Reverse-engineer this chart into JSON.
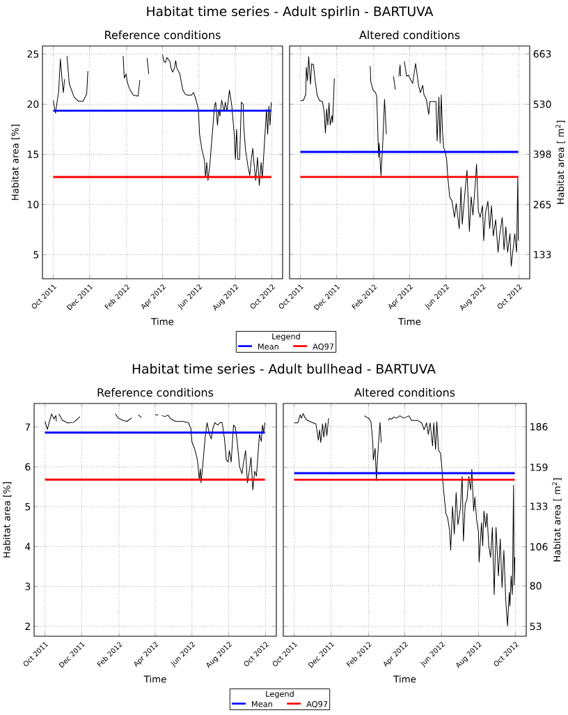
{
  "chart_data": [
    {
      "type": "line",
      "title": "Habitat time series - Adult spirlin - BARTUVA",
      "subtitle": "Reference conditions",
      "xlabel": "Time",
      "ylabel": "Habitat area [%]",
      "legend": "bottom",
      "legend_title": "Legend",
      "grid": true,
      "xlim": [
        "2011-09-13",
        "2012-10-19"
      ],
      "ylim": [
        2.6,
        25.8
      ],
      "yticks": [
        5,
        10,
        15,
        20,
        25
      ],
      "xticks": [
        {
          "value": "2011-10-01",
          "label": "Oct 2011"
        },
        {
          "value": "2011-12-01",
          "label": "Dec 2011"
        },
        {
          "value": "2012-02-01",
          "label": "Feb 2012"
        },
        {
          "value": "2012-04-01",
          "label": "Apr 2012"
        },
        {
          "value": "2012-06-01",
          "label": "Jun 2012"
        },
        {
          "value": "2012-08-01",
          "label": "Aug 2012"
        },
        {
          "value": "2012-10-01",
          "label": "Oct 2012"
        }
      ],
      "ref_lines": [
        {
          "axis": "y",
          "value": 19.35,
          "label": "Mean",
          "color": "#0000ff"
        },
        {
          "axis": "y",
          "value": 12.74,
          "label": "AQ97",
          "color": "#ff0000"
        }
      ],
      "series": [
        {
          "color": "#000000",
          "x": [
            "2011-10-01",
            "2011-10-05",
            "2011-10-08",
            "2011-10-10",
            "2011-10-13",
            "2011-10-16",
            "2011-10-18",
            "2011-10-20",
            "2011-10-22",
            "2011-10-24",
            "2011-10-28",
            "2011-11-05",
            "2011-11-12",
            "2011-11-20",
            "2011-11-26",
            "2011-11-28",
            "2011-12-20",
            "2012-01-26",
            "2012-01-28",
            "2012-01-31",
            "2012-02-02",
            "2012-02-06",
            "2012-02-12",
            "2012-02-20",
            "2012-02-23",
            "2012-02-28",
            "2012-03-06",
            "2012-03-09",
            "2012-03-19",
            "2012-04-01",
            "2012-04-03",
            "2012-04-06",
            "2012-04-08",
            "2012-04-13",
            "2012-04-16",
            "2012-04-18",
            "2012-04-21",
            "2012-04-23",
            "2012-04-25",
            "2012-04-30",
            "2012-05-05",
            "2012-05-09",
            "2012-05-13",
            "2012-05-19",
            "2012-05-23",
            "2012-05-27",
            "2012-05-31",
            "2012-06-02",
            "2012-06-06",
            "2012-06-10",
            "2012-06-12",
            "2012-06-14",
            "2012-06-16",
            "2012-06-19",
            "2012-06-22",
            "2012-06-24",
            "2012-06-27",
            "2012-06-29",
            "2012-07-02",
            "2012-07-04",
            "2012-07-06",
            "2012-07-09",
            "2012-07-13",
            "2012-07-15",
            "2012-07-18",
            "2012-07-22",
            "2012-07-26",
            "2012-07-30",
            "2012-08-01",
            "2012-08-03",
            "2012-08-05",
            "2012-08-08",
            "2012-08-11",
            "2012-08-14",
            "2012-08-15",
            "2012-08-18",
            "2012-08-22",
            "2012-08-25",
            "2012-08-28",
            "2012-08-30",
            "2012-09-01",
            "2012-09-04",
            "2012-09-07",
            "2012-09-10",
            "2012-09-13",
            "2012-09-15",
            "2012-09-19",
            "2012-09-22",
            "2012-09-24",
            "2012-09-26",
            "2012-09-28",
            "2012-09-30"
          ],
          "values": [
            20.35,
            19.1,
            20.45,
            21.15,
            24.5,
            22.3,
            21.15,
            22.5,
            null,
            24.8,
            22.0,
            20.7,
            20.3,
            20.3,
            21.0,
            23.3,
            null,
            24.8,
            22.6,
            23.0,
            22.2,
            21.5,
            20.9,
            20.8,
            22.4,
            null,
            24.6,
            23.0,
            null,
            24.95,
            24.3,
            24.15,
            24.65,
            24.3,
            23.45,
            23.2,
            23.6,
            24.35,
            23.6,
            23.0,
            21.4,
            21.0,
            20.9,
            20.9,
            21.15,
            20.45,
            19.5,
            17.0,
            15.4,
            14.5,
            12.7,
            14.2,
            12.4,
            13.8,
            16.1,
            17.5,
            19.8,
            20.2,
            17.9,
            19.5,
            18.8,
            20.4,
            19.3,
            20.2,
            19.3,
            21.4,
            19.8,
            17.0,
            14.5,
            17.5,
            14.5,
            14.5,
            20.2,
            20.0,
            17.7,
            15.4,
            13.8,
            12.9,
            14.7,
            15.6,
            14.2,
            12.4,
            14.7,
            11.9,
            14.2,
            12.6,
            16.5,
            19.5,
            17.0,
            19.8,
            17.9,
            20.2
          ]
        }
      ]
    },
    {
      "type": "line",
      "subtitle": "Altered conditions",
      "xlabel": "Time",
      "y2label": "Habitat area [ m$^{2}$]",
      "grid": true,
      "xlim": [
        "2011-09-13",
        "2012-10-19"
      ],
      "y2lim": [
        69,
        684
      ],
      "y2ticks": [
        133,
        265,
        398,
        530,
        663
      ],
      "xticks": [
        {
          "value": "2011-10-01",
          "label": "Oct 2011"
        },
        {
          "value": "2011-12-01",
          "label": "Dec 2011"
        },
        {
          "value": "2012-02-01",
          "label": "Feb 2012"
        },
        {
          "value": "2012-04-01",
          "label": "Apr 2012"
        },
        {
          "value": "2012-06-01",
          "label": "Jun 2012"
        },
        {
          "value": "2012-08-01",
          "label": "Aug 2012"
        },
        {
          "value": "2012-10-01",
          "label": "Oct 2012"
        }
      ],
      "ref_lines": [
        {
          "axis": "y2",
          "value": 404,
          "color": "#0000ff"
        },
        {
          "axis": "y2",
          "value": 338,
          "color": "#ff0000"
        }
      ],
      "series": [
        {
          "color": "#000000",
          "axis": "y2",
          "x": [
            "2011-10-01",
            "2011-10-06",
            "2011-10-10",
            "2011-10-11",
            "2011-10-13",
            "2011-10-15",
            "2011-10-18",
            "2011-10-20",
            "2011-10-23",
            "2011-10-25",
            "2011-10-29",
            "2011-11-02",
            "2011-11-07",
            "2011-11-10",
            "2011-11-12",
            "2011-11-14",
            "2011-11-16",
            "2011-11-18",
            "2011-11-20",
            "2011-11-23",
            "2011-11-24",
            "2011-11-27",
            "2011-12-10",
            "2012-01-26",
            "2012-01-27",
            "2012-01-31",
            "2012-02-04",
            "2012-02-06",
            "2012-02-09",
            "2012-02-10",
            "2012-02-13",
            "2012-02-16",
            "2012-02-19",
            "2012-02-22",
            "2012-02-28",
            "2012-03-05",
            "2012-03-08",
            "2012-03-10",
            "2012-03-14",
            "2012-03-16",
            "2012-03-17",
            "2012-03-20",
            "2012-03-23",
            "2012-03-27",
            "2012-03-30",
            "2012-04-02",
            "2012-04-06",
            "2012-04-11",
            "2012-04-16",
            "2012-04-19",
            "2012-04-23",
            "2012-04-25",
            "2012-04-29",
            "2012-05-03",
            "2012-05-05",
            "2012-05-11",
            "2012-05-15",
            "2012-05-17",
            "2012-05-20",
            "2012-05-22",
            "2012-05-24",
            "2012-05-26",
            "2012-05-28",
            "2012-05-30",
            "2012-06-02",
            "2012-06-04",
            "2012-06-07",
            "2012-06-11",
            "2012-06-15",
            "2012-06-18",
            "2012-06-23",
            "2012-06-26",
            "2012-06-28",
            "2012-07-02",
            "2012-07-06",
            "2012-07-10",
            "2012-07-13",
            "2012-07-16",
            "2012-07-20",
            "2012-07-22",
            "2012-07-25",
            "2012-07-28",
            "2012-08-01",
            "2012-08-03",
            "2012-08-06",
            "2012-08-10",
            "2012-08-13",
            "2012-08-16",
            "2012-08-19",
            "2012-08-23",
            "2012-08-27",
            "2012-08-30",
            "2012-09-03",
            "2012-09-06",
            "2012-09-09",
            "2012-09-12",
            "2012-09-16",
            "2012-09-18",
            "2012-09-21",
            "2012-09-24",
            "2012-09-27",
            "2012-09-29",
            "2012-09-30"
          ],
          "values": [
            540,
            540,
            555,
            628,
            592,
            656,
            583,
            637,
            634,
            604,
            555,
            540,
            537,
            509,
            454,
            518,
            475,
            534,
            475,
            500,
            482,
            598,
            null,
            631,
            589,
            567,
            561,
            549,
            390,
            427,
            341,
            427,
            543,
            451,
            null,
            604,
            569,
            null,
            604,
            634,
            604,
            null,
            644,
            604,
            607,
            597,
            585,
            638,
            579,
            561,
            580,
            555,
            543,
            503,
            537,
            537,
            537,
            433,
            549,
            427,
            555,
            457,
            415,
            408,
            384,
            335,
            286,
            274,
            231,
            268,
            201,
            311,
            213,
            286,
            356,
            194,
            286,
            237,
            323,
            372,
            249,
            231,
            262,
            170,
            243,
            274,
            201,
            262,
            182,
            225,
            139,
            188,
            231,
            145,
            206,
            139,
            188,
            102,
            145,
            188,
            139,
            335,
            170
          ]
        }
      ]
    },
    {
      "type": "line",
      "title": "Habitat time series - Adult bullhead - BARTUVA",
      "subtitle": "Reference conditions",
      "xlabel": "Time",
      "ylabel": "Habitat area [%]",
      "legend": "bottom",
      "legend_title": "Legend",
      "grid": true,
      "xlim": [
        "2011-09-13",
        "2012-10-19"
      ],
      "ylim": [
        1.75,
        7.59
      ],
      "yticks": [
        2,
        3,
        4,
        5,
        6,
        7
      ],
      "xticks": [
        {
          "value": "2011-10-01",
          "label": "Oct 2011"
        },
        {
          "value": "2011-12-01",
          "label": "Dec 2011"
        },
        {
          "value": "2012-02-01",
          "label": "Feb 2012"
        },
        {
          "value": "2012-04-01",
          "label": "Apr 2012"
        },
        {
          "value": "2012-06-01",
          "label": "Jun 2012"
        },
        {
          "value": "2012-08-01",
          "label": "Aug 2012"
        },
        {
          "value": "2012-10-01",
          "label": "Oct 2012"
        }
      ],
      "ref_lines": [
        {
          "axis": "y",
          "value": 6.86,
          "label": "Mean",
          "color": "#0000ff"
        },
        {
          "axis": "y",
          "value": 5.68,
          "label": "AQ97",
          "color": "#ff0000"
        }
      ],
      "series": [
        {
          "color": "#000000",
          "x": [
            "2011-10-01",
            "2011-10-05",
            "2011-10-09",
            "2011-10-12",
            "2011-10-16",
            "2011-10-19",
            "2011-10-20",
            "2011-10-22",
            "2011-10-24",
            "2011-10-30",
            "2011-11-08",
            "2011-11-18",
            "2011-11-26",
            "2011-11-28",
            "2011-12-20",
            "2012-01-26",
            "2012-01-30",
            "2012-02-07",
            "2012-02-14",
            "2012-02-22",
            "2012-02-28",
            "2012-03-04",
            "2012-03-09",
            "2012-03-14",
            "2012-04-01",
            "2012-04-06",
            "2012-04-09",
            "2012-04-12",
            "2012-04-17",
            "2012-04-22",
            "2012-04-27",
            "2012-05-05",
            "2012-05-17",
            "2012-05-26",
            "2012-05-30",
            "2012-06-01",
            "2012-06-05",
            "2012-06-09",
            "2012-06-11",
            "2012-06-13",
            "2012-06-15",
            "2012-06-16",
            "2012-06-18",
            "2012-06-21",
            "2012-06-23",
            "2012-06-26",
            "2012-06-30",
            "2012-07-03",
            "2012-07-06",
            "2012-07-09",
            "2012-07-11",
            "2012-07-14",
            "2012-07-17",
            "2012-07-21",
            "2012-07-25",
            "2012-07-28",
            "2012-07-31",
            "2012-08-02",
            "2012-08-05",
            "2012-08-09",
            "2012-08-12",
            "2012-08-15",
            "2012-08-19",
            "2012-08-23",
            "2012-08-25",
            "2012-08-29",
            "2012-09-01",
            "2012-09-04",
            "2012-09-07",
            "2012-09-10",
            "2012-09-13",
            "2012-09-16",
            "2012-09-21",
            "2012-09-24",
            "2012-09-26",
            "2012-09-28",
            "2012-09-30"
          ],
          "values": [
            7.14,
            6.94,
            7.17,
            7.33,
            7.2,
            7.29,
            7.14,
            null,
            7.33,
            7.17,
            7.1,
            7.12,
            7.23,
            7.26,
            null,
            7.33,
            7.23,
            7.17,
            7.14,
            7.23,
            null,
            7.31,
            7.24,
            null,
            7.31,
            7.3,
            null,
            7.29,
            7.26,
            7.3,
            7.2,
            7.14,
            7.14,
            7.11,
            6.97,
            6.62,
            6.47,
            6.24,
            6.06,
            5.68,
            5.95,
            5.6,
            5.89,
            6.41,
            6.76,
            7.11,
            6.82,
            6.7,
            6.99,
            7.11,
            7.08,
            7.05,
            7.11,
            7.11,
            6.7,
            6.18,
            6.12,
            6.41,
            6.12,
            7.05,
            6.99,
            6.64,
            6.0,
            5.83,
            6.06,
            6.41,
            5.6,
            5.89,
            6.24,
            5.42,
            5.89,
            5.77,
            6.82,
            6.64,
            7.05,
            6.85,
            7.11
          ]
        }
      ]
    },
    {
      "type": "line",
      "subtitle": "Altered conditions",
      "xlabel": "Time",
      "y2label": "Habitat area [ m$^{2}$]",
      "grid": true,
      "xlim": [
        "2011-09-13",
        "2012-10-19"
      ],
      "y2lim": [
        46.4,
        201.5
      ],
      "y2ticks": [
        53,
        80,
        106,
        133,
        159,
        186
      ],
      "xticks": [
        {
          "value": "2011-10-01",
          "label": "Oct 2011"
        },
        {
          "value": "2011-12-01",
          "label": "Dec 2011"
        },
        {
          "value": "2012-02-01",
          "label": "Feb 2012"
        },
        {
          "value": "2012-04-01",
          "label": "Apr 2012"
        },
        {
          "value": "2012-06-01",
          "label": "Jun 2012"
        },
        {
          "value": "2012-08-01",
          "label": "Aug 2012"
        },
        {
          "value": "2012-10-01",
          "label": "Oct 2012"
        }
      ],
      "ref_lines": [
        {
          "axis": "y2",
          "value": 155.1,
          "color": "#0000ff"
        },
        {
          "axis": "y2",
          "value": 150.7,
          "color": "#ff0000"
        }
      ],
      "series": [
        {
          "color": "#000000",
          "axis": "y2",
          "x": [
            "2011-10-01",
            "2011-10-07",
            "2011-10-11",
            "2011-10-13",
            "2011-10-16",
            "2011-10-19",
            "2011-10-23",
            "2011-10-30",
            "2011-11-06",
            "2011-11-10",
            "2011-11-12",
            "2011-11-14",
            "2011-11-17",
            "2011-11-19",
            "2011-11-22",
            "2011-11-24",
            "2011-11-27",
            "2011-12-10",
            "2012-01-25",
            "2012-02-01",
            "2012-02-05",
            "2012-02-08",
            "2012-02-09",
            "2012-02-12",
            "2012-02-14",
            "2012-02-16",
            "2012-02-20",
            "2012-02-22",
            "2012-02-28",
            "2012-03-05",
            "2012-03-07",
            "2012-03-10",
            "2012-03-14",
            "2012-03-18",
            "2012-03-24",
            "2012-03-30",
            "2012-04-08",
            "2012-04-12",
            "2012-04-22",
            "2012-04-29",
            "2012-05-03",
            "2012-05-07",
            "2012-05-10",
            "2012-05-13",
            "2012-05-17",
            "2012-05-19",
            "2012-05-22",
            "2012-05-24",
            "2012-05-27",
            "2012-05-30",
            "2012-06-01",
            "2012-06-03",
            "2012-06-05",
            "2012-06-08",
            "2012-06-11",
            "2012-06-14",
            "2012-06-16",
            "2012-06-19",
            "2012-06-22",
            "2012-06-25",
            "2012-06-28",
            "2012-07-02",
            "2012-07-05",
            "2012-07-07",
            "2012-07-10",
            "2012-07-13",
            "2012-07-16",
            "2012-07-19",
            "2012-07-21",
            "2012-07-24",
            "2012-07-26",
            "2012-07-29",
            "2012-08-01",
            "2012-08-02",
            "2012-08-06",
            "2012-08-08",
            "2012-08-10",
            "2012-08-13",
            "2012-08-15",
            "2012-08-18",
            "2012-08-21",
            "2012-08-24",
            "2012-08-27",
            "2012-08-30",
            "2012-09-03",
            "2012-09-06",
            "2012-09-09",
            "2012-09-12",
            "2012-09-15",
            "2012-09-18",
            "2012-09-21",
            "2012-09-22",
            "2012-09-24",
            "2012-09-26",
            "2012-09-28",
            "2012-09-29",
            "2012-09-30"
          ],
          "values": [
            188.6,
            188.6,
            194,
            191.7,
            194.8,
            192,
            190.2,
            189,
            187.9,
            177,
            184,
            175.5,
            187.9,
            179,
            188.6,
            180,
            191.7,
            null,
            193.3,
            191.7,
            189.4,
            176.3,
            163.9,
            171.6,
            150,
            165.4,
            189,
            175.5,
            null,
            190.2,
            191.7,
            191,
            192.5,
            191.7,
            193.3,
            191.7,
            193.3,
            190.2,
            190.2,
            188.6,
            184,
            188.6,
            180.9,
            188.6,
            173.2,
            188.6,
            170.8,
            189.4,
            170.1,
            168.5,
            160.8,
            150,
            140.7,
            128.3,
            125.2,
            117.5,
            103.6,
            133,
            114.4,
            142.2,
            120.6,
            131.4,
            153,
            109.8,
            134.5,
            137.6,
            153,
            143.8,
            157.7,
            129.9,
            139.1,
            123.7,
            116,
            95.8,
            122.1,
            106.7,
            129.9,
            119,
            128.3,
            106.7,
            98.9,
            119,
            74.2,
            119,
            86.6,
            111.3,
            78.8,
            103.6,
            71.1,
            53.3,
            75.7,
            66.5,
            86.6,
            74.2,
            146.9,
            80.4,
            99
          ]
        }
      ]
    }
  ]
}
